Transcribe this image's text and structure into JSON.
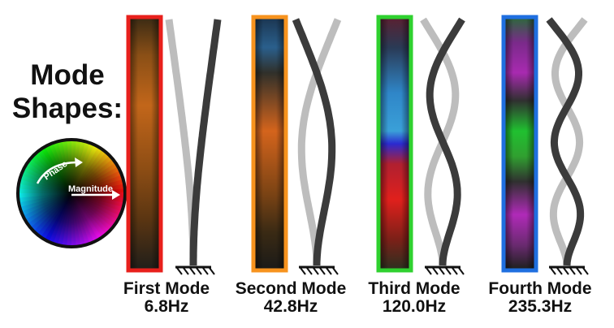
{
  "heading": {
    "line1": "Mode",
    "line2": "Shapes:"
  },
  "phase_wheel": {
    "phase_label": "Phase",
    "magnitude_label": "Magnitude"
  },
  "modes": [
    {
      "name": "First Mode",
      "frequency": "6.8Hz",
      "frame_color": "#e8201c",
      "mode_number": 1
    },
    {
      "name": "Second Mode",
      "frequency": "42.8Hz",
      "frame_color": "#f7931e",
      "mode_number": 2
    },
    {
      "name": "Third Mode",
      "frequency": "120.0Hz",
      "frame_color": "#2fd12f",
      "mode_number": 3
    },
    {
      "name": "Fourth Mode",
      "frequency": "235.3Hz",
      "frame_color": "#1f6fe0",
      "mode_number": 4
    }
  ],
  "colors": {
    "shape_dark": "#3b3b3b",
    "shape_light": "#bdbdbd",
    "frame_background": "#101820"
  }
}
